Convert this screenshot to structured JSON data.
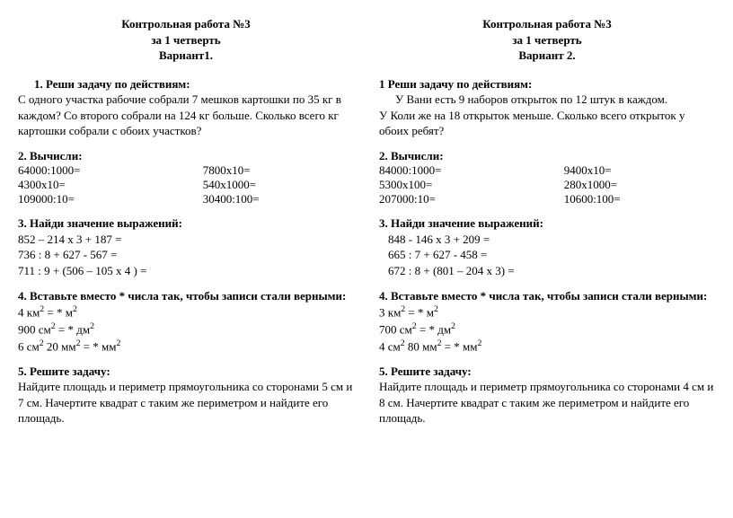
{
  "left": {
    "header": {
      "line1": "Контрольная работа №3",
      "line2": "за 1 четверть",
      "line3": "Вариант1."
    },
    "task1": {
      "title": "1. Реши задачу по действиям:",
      "text": "С одного участка рабочие собрали 7 мешков картошки по 35 кг в каждом? Со второго собрали на 124 кг больше. Сколько всего кг картошки собрали с обоих участков?"
    },
    "task2": {
      "title": "2. Вычисли:",
      "rows": [
        {
          "a": "64000:1000=",
          "b": "7800х10="
        },
        {
          "a": "4300х10=",
          "b": " 540х1000="
        },
        {
          "a": "109000:10=",
          "b": "30400:100="
        }
      ]
    },
    "task3": {
      "title": "3. Найди значение выражений:",
      "lines": [
        "852 – 214 х 3 + 187 =",
        "736 : 8 + 627 - 567 =",
        "711 : 9 + (506 – 105 х 4 ) ="
      ]
    },
    "task4": {
      "title": "4.  Вставьте  вместо * числа так, чтобы записи стали верными:",
      "l1a": "4 км",
      "l1b": " =   * м",
      "l2a": "900 см",
      "l2b": " = * дм",
      "l3a": "6 см",
      "l3b": " 20 мм",
      "l3c": " =  * мм"
    },
    "task5": {
      "title": "5. Решите задачу:",
      "text": "Найдите площадь и периметр прямоугольника со сторонами 5 см и 7 см. Начертите квадрат с таким же периметром и найдите его площадь."
    }
  },
  "right": {
    "header": {
      "line1": "Контрольная работа №3",
      "line2": "за 1 четверть",
      "line3": "Вариант 2."
    },
    "task1": {
      "title": "1 Реши задачу по действиям:",
      "text1": "У Вани есть 9 наборов открыток по 12 штук в каждом.",
      "text2": "У Коли же на 18 открыток меньше. Сколько всего открыток у обоих ребят?"
    },
    "task2": {
      "title": "2. Вычисли:",
      "rows": [
        {
          "a": "84000:1000=",
          "b": "9400х10="
        },
        {
          "a": "5300х100=",
          "b": " 280х1000="
        },
        {
          "a": "207000:10=",
          "b": "10600:100="
        }
      ]
    },
    "task3": {
      "title": "3. Найди значение выражений:",
      "lines": [
        "848 - 146 х 3 + 209 =",
        "665 : 7 + 627 - 458 =",
        "672 : 8 + (801 – 204 х 3) ="
      ]
    },
    "task4": {
      "title": "4.  Вставьте  вместо * числа так, чтобы записи стали верными:",
      "l1a": "3 км",
      "l1b": " =   * м",
      "l2a": "700 см",
      "l2b": "  = * дм",
      "l3a": "4 см",
      "l3b": " 80 мм",
      "l3c": " = *  мм"
    },
    "task5": {
      "title": "5. Решите задачу:",
      "text": " Найдите площадь и периметр прямоугольника со сторонами 4 см и 8 см. Начертите квадрат с таким же периметром и найдите его площадь."
    }
  }
}
